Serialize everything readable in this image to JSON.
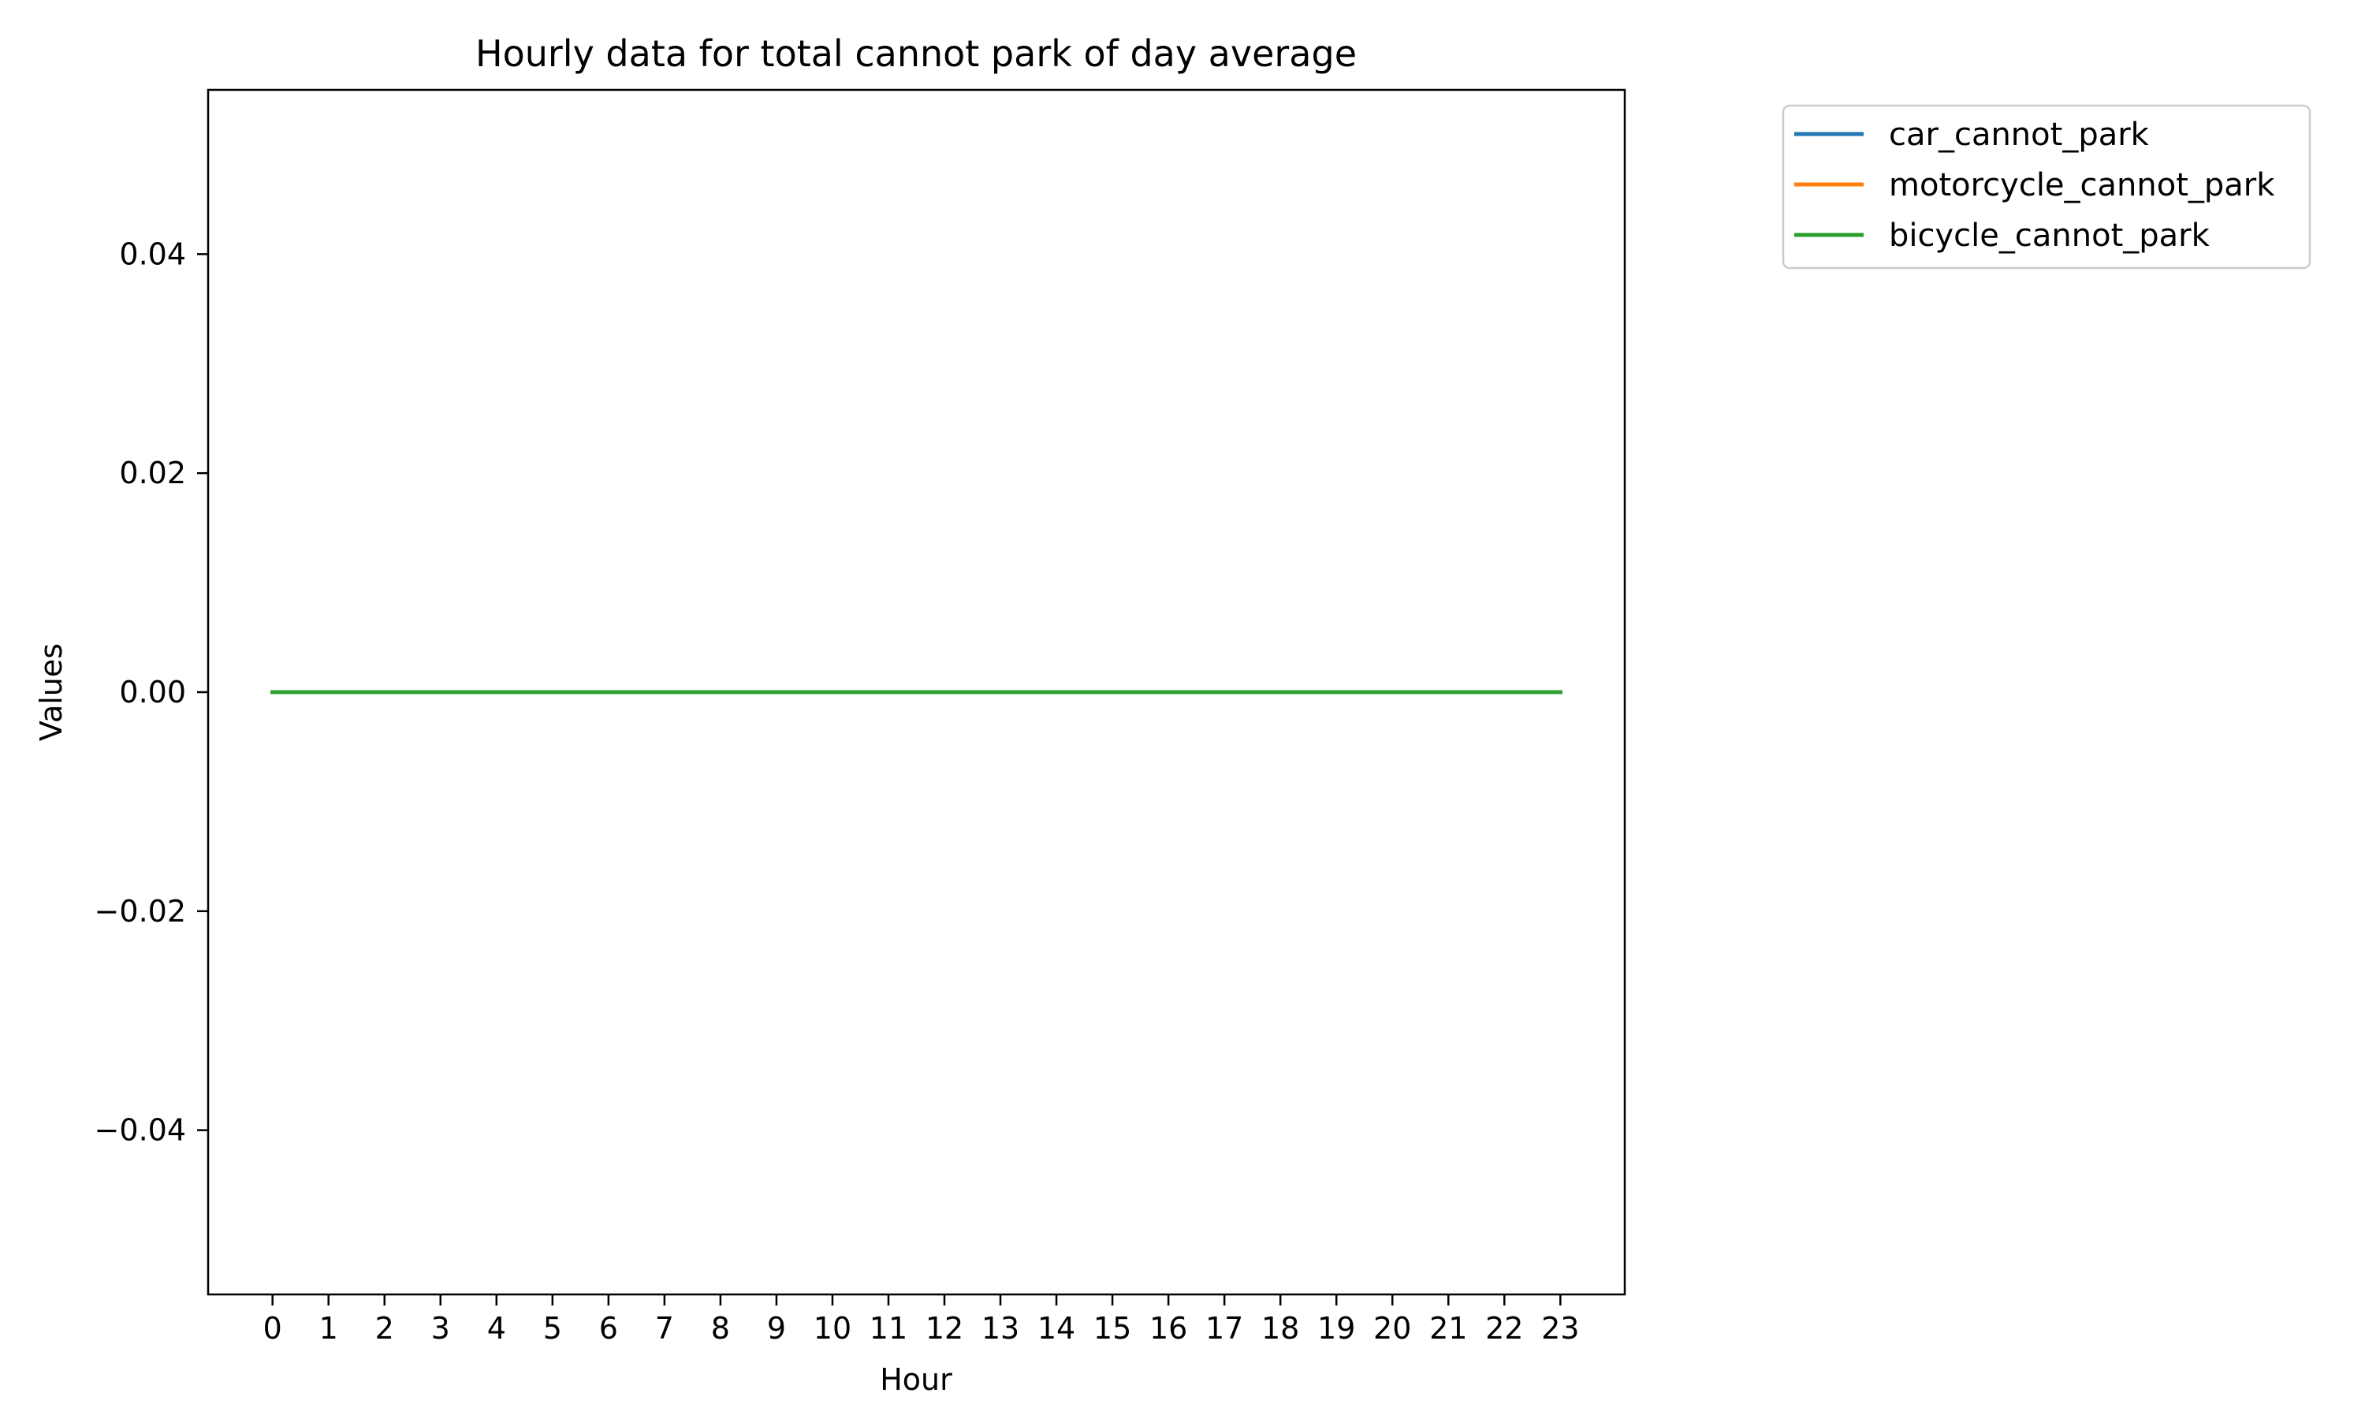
{
  "chart_data": {
    "type": "line",
    "title": "Hourly data for total cannot park of day average",
    "xlabel": "Hour",
    "ylabel": "Values",
    "x": [
      0,
      1,
      2,
      3,
      4,
      5,
      6,
      7,
      8,
      9,
      10,
      11,
      12,
      13,
      14,
      15,
      16,
      17,
      18,
      19,
      20,
      21,
      22,
      23
    ],
    "xlim": [
      -1.15,
      24.15
    ],
    "ylim": [
      -0.055,
      0.055
    ],
    "x_ticks": [
      0,
      1,
      2,
      3,
      4,
      5,
      6,
      7,
      8,
      9,
      10,
      11,
      12,
      13,
      14,
      15,
      16,
      17,
      18,
      19,
      20,
      21,
      22,
      23
    ],
    "x_tick_labels": [
      "0",
      "1",
      "2",
      "3",
      "4",
      "5",
      "6",
      "7",
      "8",
      "9",
      "10",
      "11",
      "12",
      "13",
      "14",
      "15",
      "16",
      "17",
      "18",
      "19",
      "20",
      "21",
      "22",
      "23"
    ],
    "y_ticks": [
      0.04,
      0.02,
      0.0,
      -0.02,
      -0.04
    ],
    "y_tick_labels": [
      "0.04",
      "0.02",
      "0.00",
      "−0.02",
      "−0.04"
    ],
    "grid": false,
    "legend_position": "outside-top-right",
    "series": [
      {
        "name": "car_cannot_park",
        "color": "#1f77b4",
        "values": [
          0,
          0,
          0,
          0,
          0,
          0,
          0,
          0,
          0,
          0,
          0,
          0,
          0,
          0,
          0,
          0,
          0,
          0,
          0,
          0,
          0,
          0,
          0,
          0
        ]
      },
      {
        "name": "motorcycle_cannot_park",
        "color": "#ff7f0e",
        "values": [
          0,
          0,
          0,
          0,
          0,
          0,
          0,
          0,
          0,
          0,
          0,
          0,
          0,
          0,
          0,
          0,
          0,
          0,
          0,
          0,
          0,
          0,
          0,
          0
        ]
      },
      {
        "name": "bicycle_cannot_park",
        "color": "#2ca02c",
        "values": [
          0,
          0,
          0,
          0,
          0,
          0,
          0,
          0,
          0,
          0,
          0,
          0,
          0,
          0,
          0,
          0,
          0,
          0,
          0,
          0,
          0,
          0,
          0,
          0
        ]
      }
    ]
  }
}
